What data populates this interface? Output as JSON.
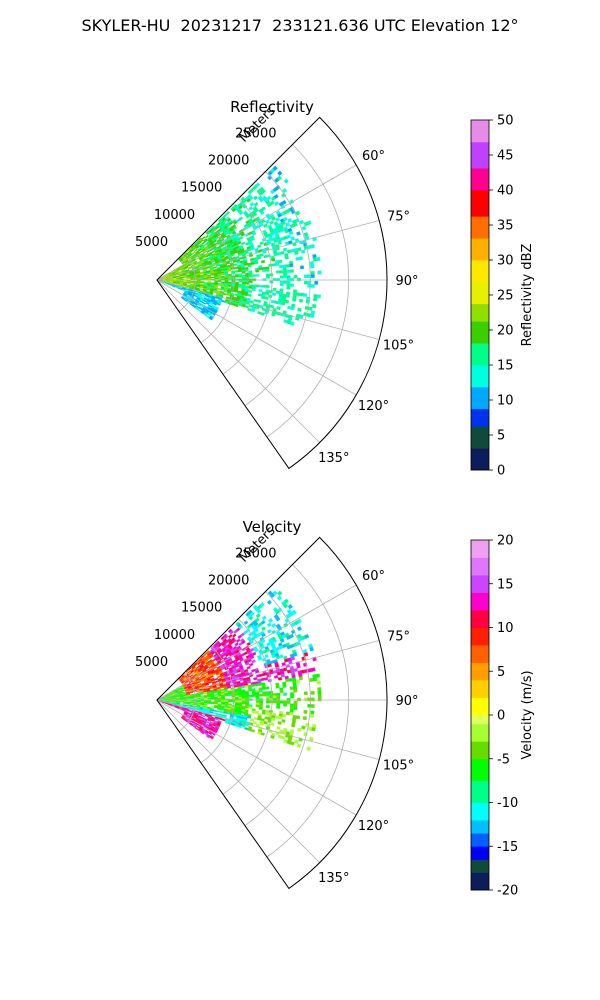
{
  "figure": {
    "title": "SKYLER-HU  20231217  233121.636 UTC Elevation 12°"
  },
  "chart_data": [
    {
      "type": "heatmap",
      "title": "Reflectivity",
      "radius_axis_label": "Meters",
      "radius_ticks": [
        "5000",
        "10000",
        "15000",
        "20000",
        "25000"
      ],
      "radius_tick_values": [
        5000,
        10000,
        15000,
        20000,
        25000
      ],
      "azimuth_range": [
        45,
        145
      ],
      "azimuth_ticks": [
        "60°",
        "75°",
        "90°",
        "105°",
        "120°",
        "135°"
      ],
      "azimuth_tick_values": [
        60,
        75,
        90,
        105,
        120,
        135
      ],
      "colorbar": {
        "label": "Reflectivity dBZ",
        "range": [
          0,
          50
        ],
        "ticks": [
          "0",
          "5",
          "10",
          "15",
          "20",
          "25",
          "30",
          "35",
          "40",
          "45",
          "50"
        ],
        "tick_values": [
          0,
          5,
          10,
          15,
          20,
          25,
          30,
          35,
          40,
          45,
          50
        ],
        "colormap": "NWSRef"
      },
      "grid": true
    },
    {
      "type": "heatmap",
      "title": "Velocity",
      "radius_axis_label": "Meters",
      "radius_ticks": [
        "5000",
        "10000",
        "15000",
        "20000",
        "25000"
      ],
      "radius_tick_values": [
        5000,
        10000,
        15000,
        20000,
        25000
      ],
      "azimuth_range": [
        45,
        145
      ],
      "azimuth_ticks": [
        "60°",
        "75°",
        "90°",
        "105°",
        "120°",
        "135°"
      ],
      "azimuth_tick_values": [
        60,
        75,
        90,
        105,
        120,
        135
      ],
      "colorbar": {
        "label": "Velocity (m/s)",
        "range": [
          -20,
          20
        ],
        "ticks": [
          "-20",
          "-15",
          "-10",
          "-5",
          "0",
          "5",
          "10",
          "15",
          "20"
        ],
        "tick_values": [
          -20,
          -15,
          -10,
          -5,
          0,
          5,
          10,
          15,
          20
        ],
        "colormap": "NWSVel"
      },
      "grid": true
    }
  ]
}
